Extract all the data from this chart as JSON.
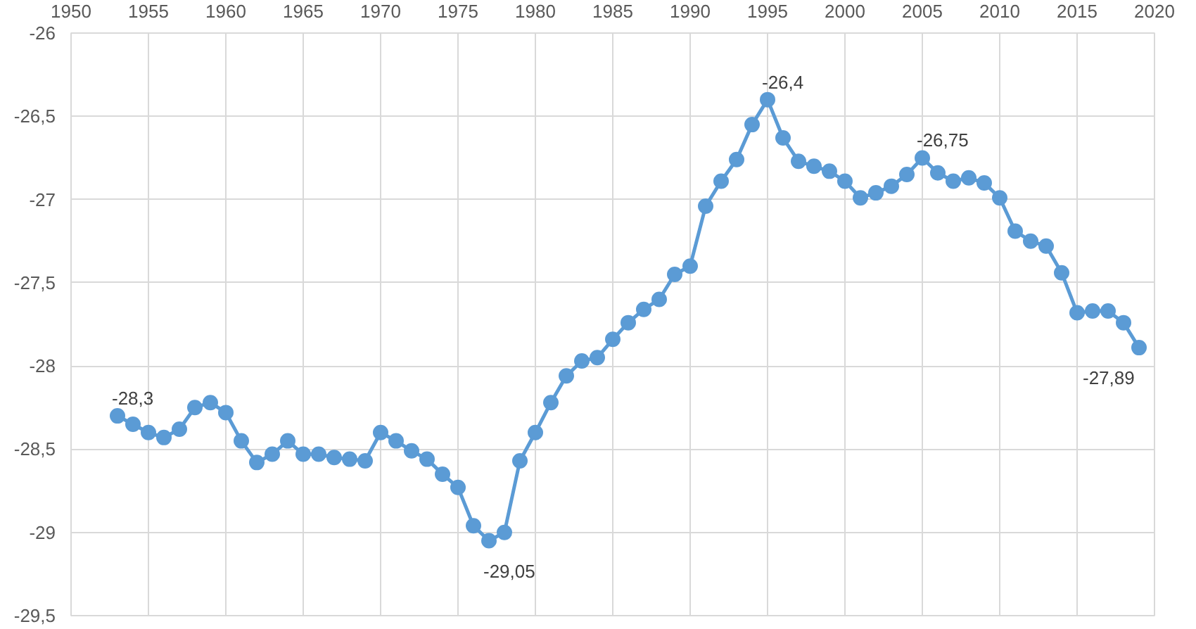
{
  "chart_data": {
    "type": "line",
    "x": [
      1953,
      1954,
      1955,
      1956,
      1957,
      1958,
      1959,
      1960,
      1961,
      1962,
      1963,
      1964,
      1965,
      1966,
      1967,
      1968,
      1969,
      1970,
      1971,
      1972,
      1973,
      1974,
      1975,
      1976,
      1977,
      1978,
      1979,
      1980,
      1981,
      1982,
      1983,
      1984,
      1985,
      1986,
      1987,
      1988,
      1989,
      1990,
      1991,
      1992,
      1993,
      1994,
      1995,
      1996,
      1997,
      1998,
      1999,
      2000,
      2001,
      2002,
      2003,
      2004,
      2005,
      2006,
      2007,
      2008,
      2009,
      2010,
      2011,
      2012,
      2013,
      2014,
      2015,
      2016,
      2017,
      2018,
      2019
    ],
    "series": [
      {
        "color": "#5b9bd5",
        "values": [
          -28.3,
          -28.35,
          -28.4,
          -28.43,
          -28.38,
          -28.25,
          -28.22,
          -28.28,
          -28.45,
          -28.58,
          -28.53,
          -28.45,
          -28.53,
          -28.53,
          -28.55,
          -28.56,
          -28.57,
          -28.4,
          -28.45,
          -28.51,
          -28.56,
          -28.65,
          -28.73,
          -28.96,
          -29.05,
          -29.0,
          -28.57,
          -28.4,
          -28.22,
          -28.06,
          -27.97,
          -27.95,
          -27.84,
          -27.74,
          -27.66,
          -27.6,
          -27.45,
          -27.4,
          -27.04,
          -26.89,
          -26.76,
          -26.55,
          -26.4,
          -26.63,
          -26.77,
          -26.8,
          -26.83,
          -26.89,
          -26.99,
          -26.96,
          -26.92,
          -26.85,
          -26.75,
          -26.84,
          -26.89,
          -26.87,
          -26.9,
          -26.99,
          -27.19,
          -27.25,
          -27.28,
          -27.44,
          -27.68,
          -27.67,
          -27.67,
          -27.74,
          -27.89
        ],
        "value_labels": [
          "-28,3",
          null,
          null,
          null,
          null,
          null,
          null,
          null,
          null,
          null,
          null,
          null,
          null,
          null,
          null,
          null,
          null,
          null,
          null,
          null,
          null,
          null,
          null,
          null,
          "-29,05",
          null,
          null,
          null,
          null,
          null,
          null,
          null,
          null,
          null,
          null,
          null,
          null,
          null,
          null,
          null,
          null,
          null,
          "-26,4",
          null,
          null,
          null,
          null,
          null,
          null,
          null,
          null,
          null,
          "-26,75",
          null,
          null,
          null,
          null,
          null,
          null,
          null,
          null,
          null,
          null,
          null,
          null,
          null,
          "-27,89"
        ]
      }
    ],
    "xlim": [
      1950,
      2020
    ],
    "xticks": [
      1950,
      1955,
      1960,
      1965,
      1970,
      1975,
      1980,
      1985,
      1990,
      1995,
      2000,
      2005,
      2010,
      2015,
      2020
    ],
    "ylim": [
      -29.5,
      -26
    ],
    "yticks": [
      -26,
      {
        "value": -26.5,
        "label": "-26,5"
      },
      -27,
      {
        "value": -27.5,
        "label": "-27,5"
      },
      -28,
      {
        "value": -28.5,
        "label": "-28,5"
      },
      -29,
      {
        "value": -29.5,
        "label": "-29,5"
      }
    ],
    "grid": true,
    "marker": "circle",
    "line_style": "solid"
  }
}
